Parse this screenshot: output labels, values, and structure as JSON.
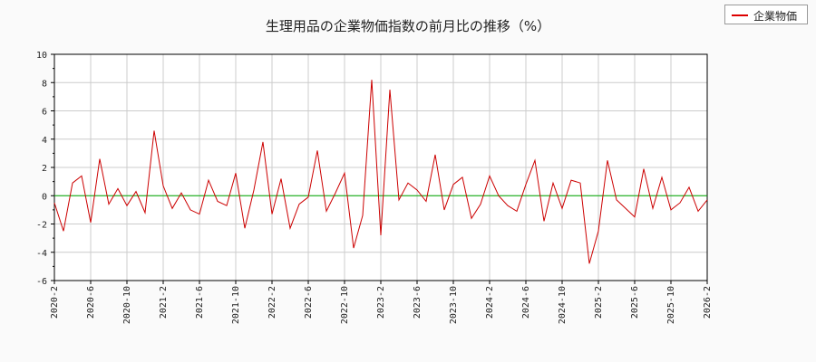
{
  "chart_data": {
    "type": "line",
    "title": "生理用品の企業物価指数の前月比の推移（%）",
    "xlabel": "",
    "ylabel": "",
    "ylim": [
      -6,
      10
    ],
    "yticks": [
      10,
      8,
      6,
      4,
      2,
      0,
      -2,
      -4,
      -6
    ],
    "xticks": [
      "2020-2",
      "2020-6",
      "2020-10",
      "2021-2",
      "2021-6",
      "2021-10",
      "2022-2",
      "2022-6",
      "2022-10",
      "2023-2",
      "2023-6",
      "2023-10",
      "2024-2",
      "2024-6",
      "2024-10",
      "2025-2",
      "2025-6",
      "2025-10",
      "2026-2"
    ],
    "grid": true,
    "legend_position": "top-right",
    "zero_line_color": "#00aa00",
    "series": [
      {
        "name": "企業物価",
        "color": "#cc0000",
        "x": [
          "2020-2",
          "2020-3",
          "2020-4",
          "2020-5",
          "2020-6",
          "2020-7",
          "2020-8",
          "2020-9",
          "2020-10",
          "2020-11",
          "2020-12",
          "2021-1",
          "2021-2",
          "2021-3",
          "2021-4",
          "2021-5",
          "2021-6",
          "2021-7",
          "2021-8",
          "2021-9",
          "2021-10",
          "2021-11",
          "2021-12",
          "2022-1",
          "2022-2",
          "2022-3",
          "2022-4",
          "2022-5",
          "2022-6",
          "2022-7",
          "2022-8",
          "2022-9",
          "2022-10",
          "2022-11",
          "2022-12",
          "2023-1",
          "2023-2",
          "2023-3",
          "2023-4",
          "2023-5",
          "2023-6",
          "2023-7",
          "2023-8",
          "2023-9",
          "2023-10",
          "2023-11",
          "2023-12",
          "2024-1",
          "2024-2",
          "2024-3",
          "2024-4",
          "2024-5",
          "2024-6",
          "2024-7",
          "2024-8",
          "2024-9",
          "2024-10",
          "2024-11",
          "2024-12",
          "2025-1",
          "2025-2",
          "2025-3",
          "2025-4",
          "2025-5",
          "2025-6",
          "2025-7",
          "2025-8",
          "2025-9",
          "2025-10",
          "2025-11",
          "2025-12",
          "2026-1",
          "2026-2"
        ],
        "values": [
          -0.5,
          -2.5,
          0.9,
          1.4,
          -1.9,
          2.6,
          -0.6,
          0.5,
          -0.7,
          0.3,
          -1.2,
          4.6,
          0.7,
          -0.9,
          0.2,
          -1.0,
          -1.3,
          1.1,
          -0.4,
          -0.7,
          1.6,
          -2.3,
          0.4,
          3.8,
          -1.3,
          1.2,
          -2.3,
          -0.6,
          -0.1,
          3.2,
          -1.1,
          0.2,
          1.6,
          -3.7,
          -1.4,
          8.2,
          -2.8,
          7.5,
          -0.3,
          0.9,
          0.4,
          -0.4,
          2.9,
          -1.0,
          0.8,
          1.3,
          -1.6,
          -0.6,
          1.4,
          0.0,
          -0.7,
          -1.1,
          0.8,
          2.5,
          -1.8,
          0.9,
          -0.9,
          1.1,
          0.9,
          -4.8,
          -2.5,
          2.5,
          -0.3,
          -0.9,
          -1.5,
          1.9,
          -0.9,
          1.3,
          -1.0,
          -0.5,
          0.6,
          -1.1,
          -0.3
        ]
      }
    ]
  }
}
